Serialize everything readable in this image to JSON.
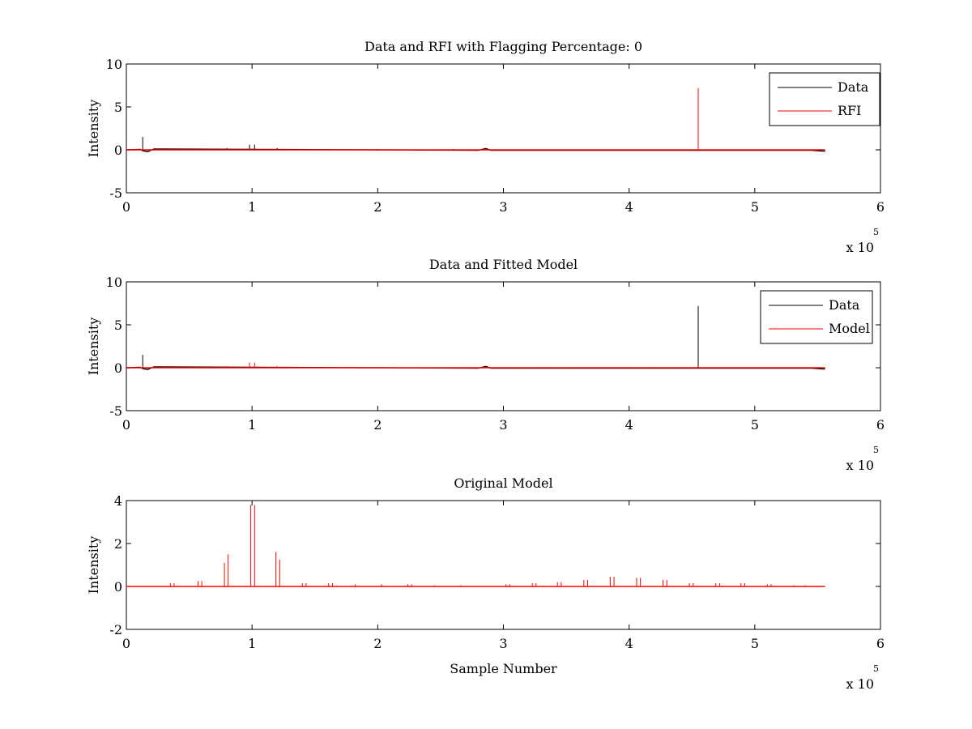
{
  "chart_data": [
    {
      "type": "line",
      "title": "Data and RFI with Flagging Percentage: 0",
      "xlabel": "",
      "ylabel": "Intensity",
      "xlim": [
        0,
        6
      ],
      "ylim": [
        -5,
        10
      ],
      "xticks": [
        "0",
        "1",
        "2",
        "3",
        "4",
        "5",
        "6"
      ],
      "yticks": [
        "-5",
        "0",
        "5",
        "10"
      ],
      "x_multiplier": {
        "base": "x 10",
        "exp": "5"
      },
      "legend": {
        "placement": "top-right",
        "entries": [
          "Data",
          "RFI"
        ]
      },
      "series": [
        {
          "name": "Data",
          "color": "#000000",
          "baseline": {
            "x": [
              0,
              0.11,
              0.13,
              0.17,
              0.22,
              2.8,
              2.86,
              2.9,
              5.45,
              5.5,
              5.56
            ],
            "y": [
              0,
              0.05,
              -0.1,
              -0.2,
              0.1,
              -0.05,
              0.15,
              -0.05,
              -0.05,
              -0.1,
              -0.15
            ]
          },
          "spikes": [
            [
              0.13,
              1.5
            ],
            [
              0.98,
              0.6
            ],
            [
              1.02,
              0.6
            ],
            [
              0.8,
              0.2
            ],
            [
              1.2,
              0.2
            ],
            [
              1.4,
              0.1
            ],
            [
              2.0,
              0.1
            ],
            [
              2.6,
              0.1
            ],
            [
              3.6,
              0.05
            ],
            [
              4.0,
              0.05
            ],
            [
              4.5,
              0.05
            ],
            [
              5.0,
              0.05
            ]
          ]
        },
        {
          "name": "RFI",
          "color": "#ff0000",
          "baseline": {
            "x": [
              0,
              5.56
            ],
            "y": [
              0,
              0
            ]
          },
          "spikes": [
            [
              4.55,
              7.2
            ]
          ]
        }
      ]
    },
    {
      "type": "line",
      "title": "Data and Fitted Model",
      "xlabel": "",
      "ylabel": "Intensity",
      "xlim": [
        0,
        6
      ],
      "ylim": [
        -5,
        10
      ],
      "xticks": [
        "0",
        "1",
        "2",
        "3",
        "4",
        "5",
        "6"
      ],
      "yticks": [
        "-5",
        "0",
        "5",
        "10"
      ],
      "x_multiplier": {
        "base": "x 10",
        "exp": "5"
      },
      "legend": {
        "placement": "top-right",
        "entries": [
          "Data",
          "Model"
        ]
      },
      "series": [
        {
          "name": "Data",
          "color": "#000000",
          "baseline": {
            "x": [
              0,
              0.11,
              0.13,
              0.17,
              0.22,
              2.8,
              2.86,
              2.9,
              5.45,
              5.5,
              5.56
            ],
            "y": [
              0,
              0.05,
              -0.1,
              -0.2,
              0.1,
              -0.05,
              0.15,
              -0.05,
              -0.05,
              -0.1,
              -0.15
            ]
          },
          "spikes": [
            [
              0.13,
              1.5
            ],
            [
              4.55,
              7.2
            ]
          ]
        },
        {
          "name": "Model",
          "color": "#ff0000",
          "baseline": {
            "x": [
              0,
              5.56
            ],
            "y": [
              0,
              0
            ]
          },
          "spikes": [
            [
              0.98,
              0.6
            ],
            [
              1.02,
              0.6
            ],
            [
              0.8,
              0.2
            ],
            [
              1.2,
              0.2
            ],
            [
              0.6,
              0.1
            ],
            [
              1.4,
              0.1
            ],
            [
              1.6,
              0.1
            ],
            [
              3.2,
              0.05
            ],
            [
              3.5,
              0.05
            ],
            [
              4.1,
              0.05
            ],
            [
              4.3,
              0.05
            ]
          ]
        }
      ]
    },
    {
      "type": "line",
      "title": "Original Model",
      "xlabel": "Sample Number",
      "ylabel": "Intensity",
      "xlim": [
        0,
        6
      ],
      "ylim": [
        -2,
        4
      ],
      "xticks": [
        "0",
        "1",
        "2",
        "3",
        "4",
        "5",
        "6"
      ],
      "yticks": [
        "-2",
        "0",
        "2",
        "4"
      ],
      "x_multiplier": {
        "base": "x 10",
        "exp": "5"
      },
      "legend": null,
      "series": [
        {
          "name": "Model",
          "color": "#ff0000",
          "baseline": {
            "x": [
              0,
              5.56
            ],
            "y": [
              0,
              0
            ]
          },
          "spikes": [
            [
              0.35,
              0.15
            ],
            [
              0.38,
              0.15
            ],
            [
              0.57,
              0.25
            ],
            [
              0.6,
              0.25
            ],
            [
              0.78,
              1.1
            ],
            [
              0.81,
              1.5
            ],
            [
              0.99,
              3.8
            ],
            [
              1.02,
              3.8
            ],
            [
              1.19,
              1.6
            ],
            [
              1.22,
              1.25
            ],
            [
              1.4,
              0.15
            ],
            [
              1.43,
              0.15
            ],
            [
              1.61,
              0.15
            ],
            [
              1.64,
              0.15
            ],
            [
              1.82,
              0.1
            ],
            [
              2.03,
              0.1
            ],
            [
              2.24,
              0.1
            ],
            [
              2.27,
              0.1
            ],
            [
              2.45,
              0.05
            ],
            [
              2.66,
              0.05
            ],
            [
              3.02,
              0.1
            ],
            [
              3.05,
              0.1
            ],
            [
              3.23,
              0.15
            ],
            [
              3.26,
              0.15
            ],
            [
              3.43,
              0.2
            ],
            [
              3.46,
              0.2
            ],
            [
              3.64,
              0.3
            ],
            [
              3.67,
              0.3
            ],
            [
              3.85,
              0.45
            ],
            [
              3.88,
              0.45
            ],
            [
              4.06,
              0.4
            ],
            [
              4.09,
              0.4
            ],
            [
              4.27,
              0.3
            ],
            [
              4.3,
              0.3
            ],
            [
              4.48,
              0.15
            ],
            [
              4.51,
              0.15
            ],
            [
              4.69,
              0.15
            ],
            [
              4.72,
              0.15
            ],
            [
              4.89,
              0.15
            ],
            [
              4.92,
              0.15
            ],
            [
              5.1,
              0.1
            ],
            [
              5.13,
              0.1
            ],
            [
              5.31,
              0.05
            ],
            [
              5.4,
              0.05
            ]
          ]
        }
      ]
    }
  ]
}
